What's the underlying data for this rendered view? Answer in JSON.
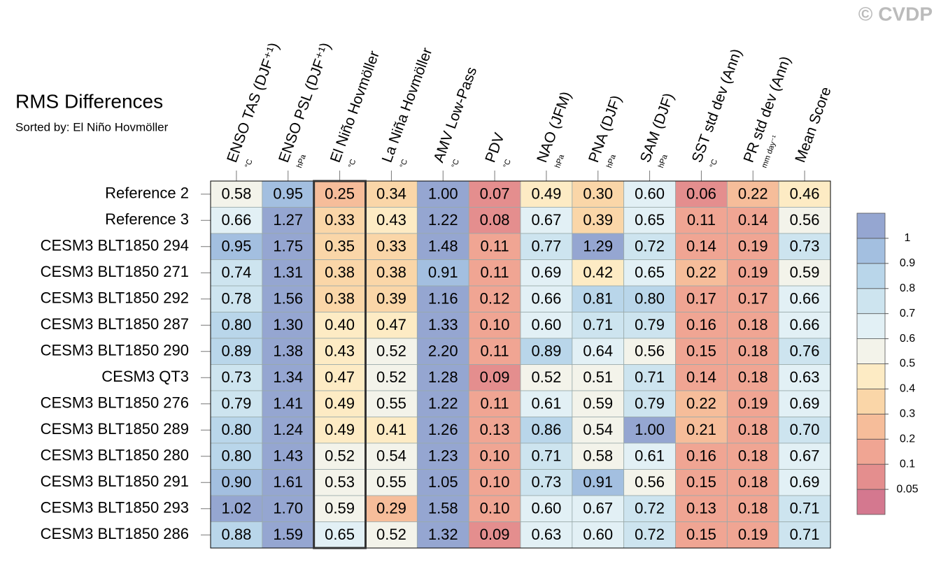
{
  "chart_data": {
    "type": "heatmap",
    "title": "RMS Differences",
    "subtitle": "Sorted by: El Niño Hovmöller",
    "watermark": "© CVDP",
    "columns": [
      "ENSO TAS (DJF⁺¹)",
      "ENSO PSL (DJF⁺¹)",
      "El Niño Hovmöller",
      "La Niña Hovmöller",
      "AMV Low-Pass",
      "PDV",
      "NAO (JFM)",
      "PNA (DJF)",
      "SAM (DJF)",
      "SST std dev (Ann)",
      "PR std dev (Ann)",
      "Mean Score"
    ],
    "units": [
      "°C",
      "hPa",
      "°C",
      "°C",
      "°C",
      "°C",
      "hPa",
      "hPa",
      "hPa",
      "°C",
      "mm day⁻¹",
      null
    ],
    "rows": [
      "Reference 2",
      "Reference 3",
      "CESM3 BLT1850 294",
      "CESM3 BLT1850 271",
      "CESM3 BLT1850 292",
      "CESM3 BLT1850 287",
      "CESM3 BLT1850 290",
      "CESM3 QT3",
      "CESM3 BLT1850 276",
      "CESM3 BLT1850 289",
      "CESM3 BLT1850 280",
      "CESM3 BLT1850 291",
      "CESM3 BLT1850 293",
      "CESM3 BLT1850 286"
    ],
    "values": [
      [
        0.58,
        0.95,
        0.25,
        0.34,
        1.0,
        0.07,
        0.49,
        0.3,
        0.6,
        0.06,
        0.22,
        0.46
      ],
      [
        0.66,
        1.27,
        0.33,
        0.43,
        1.22,
        0.08,
        0.67,
        0.39,
        0.65,
        0.11,
        0.14,
        0.56
      ],
      [
        0.95,
        1.75,
        0.35,
        0.33,
        1.48,
        0.11,
        0.77,
        1.29,
        0.72,
        0.14,
        0.19,
        0.73
      ],
      [
        0.74,
        1.31,
        0.38,
        0.38,
        0.91,
        0.11,
        0.69,
        0.42,
        0.65,
        0.22,
        0.19,
        0.59
      ],
      [
        0.78,
        1.56,
        0.38,
        0.39,
        1.16,
        0.12,
        0.66,
        0.81,
        0.8,
        0.17,
        0.17,
        0.66
      ],
      [
        0.8,
        1.3,
        0.4,
        0.47,
        1.33,
        0.1,
        0.6,
        0.71,
        0.79,
        0.16,
        0.18,
        0.66
      ],
      [
        0.89,
        1.38,
        0.43,
        0.52,
        2.2,
        0.11,
        0.89,
        0.64,
        0.56,
        0.15,
        0.18,
        0.76
      ],
      [
        0.73,
        1.34,
        0.47,
        0.52,
        1.28,
        0.09,
        0.52,
        0.51,
        0.71,
        0.14,
        0.18,
        0.63
      ],
      [
        0.79,
        1.41,
        0.49,
        0.55,
        1.22,
        0.11,
        0.61,
        0.59,
        0.79,
        0.22,
        0.19,
        0.69
      ],
      [
        0.8,
        1.24,
        0.49,
        0.41,
        1.26,
        0.13,
        0.86,
        0.54,
        1.0,
        0.21,
        0.18,
        0.7
      ],
      [
        0.8,
        1.43,
        0.52,
        0.54,
        1.23,
        0.1,
        0.71,
        0.58,
        0.61,
        0.16,
        0.18,
        0.67
      ],
      [
        0.9,
        1.61,
        0.53,
        0.55,
        1.05,
        0.1,
        0.73,
        0.91,
        0.56,
        0.15,
        0.18,
        0.69
      ],
      [
        1.02,
        1.7,
        0.59,
        0.29,
        1.58,
        0.1,
        0.6,
        0.67,
        0.72,
        0.13,
        0.18,
        0.71
      ],
      [
        0.88,
        1.59,
        0.65,
        0.52,
        1.32,
        0.09,
        0.63,
        0.6,
        0.72,
        0.15,
        0.19,
        0.71
      ]
    ],
    "value_labels": [
      [
        "0.58",
        "0.95",
        "0.25",
        "0.34",
        "1.00",
        "0.07",
        "0.49",
        "0.30",
        "0.60",
        "0.06",
        "0.22",
        "0.46"
      ],
      [
        "0.66",
        "1.27",
        "0.33",
        "0.43",
        "1.22",
        "0.08",
        "0.67",
        "0.39",
        "0.65",
        "0.11",
        "0.14",
        "0.56"
      ],
      [
        "0.95",
        "1.75",
        "0.35",
        "0.33",
        "1.48",
        "0.11",
        "0.77",
        "1.29",
        "0.72",
        "0.14",
        "0.19",
        "0.73"
      ],
      [
        "0.74",
        "1.31",
        "0.38",
        "0.38",
        "0.91",
        "0.11",
        "0.69",
        "0.42",
        "0.65",
        "0.22",
        "0.19",
        "0.59"
      ],
      [
        "0.78",
        "1.56",
        "0.38",
        "0.39",
        "1.16",
        "0.12",
        "0.66",
        "0.81",
        "0.80",
        "0.17",
        "0.17",
        "0.66"
      ],
      [
        "0.80",
        "1.30",
        "0.40",
        "0.47",
        "1.33",
        "0.10",
        "0.60",
        "0.71",
        "0.79",
        "0.16",
        "0.18",
        "0.66"
      ],
      [
        "0.89",
        "1.38",
        "0.43",
        "0.52",
        "2.20",
        "0.11",
        "0.89",
        "0.64",
        "0.56",
        "0.15",
        "0.18",
        "0.76"
      ],
      [
        "0.73",
        "1.34",
        "0.47",
        "0.52",
        "1.28",
        "0.09",
        "0.52",
        "0.51",
        "0.71",
        "0.14",
        "0.18",
        "0.63"
      ],
      [
        "0.79",
        "1.41",
        "0.49",
        "0.55",
        "1.22",
        "0.11",
        "0.61",
        "0.59",
        "0.79",
        "0.22",
        "0.19",
        "0.69"
      ],
      [
        "0.80",
        "1.24",
        "0.49",
        "0.41",
        "1.26",
        "0.13",
        "0.86",
        "0.54",
        "1.00",
        "0.21",
        "0.18",
        "0.70"
      ],
      [
        "0.80",
        "1.43",
        "0.52",
        "0.54",
        "1.23",
        "0.10",
        "0.71",
        "0.58",
        "0.61",
        "0.16",
        "0.18",
        "0.67"
      ],
      [
        "0.90",
        "1.61",
        "0.53",
        "0.55",
        "1.05",
        "0.10",
        "0.73",
        "0.91",
        "0.56",
        "0.15",
        "0.18",
        "0.69"
      ],
      [
        "1.02",
        "1.70",
        "0.59",
        "0.29",
        "1.58",
        "0.10",
        "0.60",
        "0.67",
        "0.72",
        "0.13",
        "0.18",
        "0.71"
      ],
      [
        "0.88",
        "1.59",
        "0.65",
        "0.52",
        "1.32",
        "0.09",
        "0.63",
        "0.60",
        "0.72",
        "0.15",
        "0.19",
        "0.71"
      ]
    ],
    "highlight_column": 2,
    "colorbar": {
      "levels": [
        0.05,
        0.1,
        0.2,
        0.3,
        0.4,
        0.5,
        0.6,
        0.7,
        0.8,
        0.9,
        1
      ],
      "colors": [
        "#d4788f",
        "#e48e8e",
        "#f0a593",
        "#f6bd9a",
        "#fad6a8",
        "#fdebc4",
        "#f3f3ea",
        "#e2f0f5",
        "#cde4ef",
        "#b9d6ea",
        "#a3bfe0",
        "#95a6d1"
      ]
    }
  }
}
